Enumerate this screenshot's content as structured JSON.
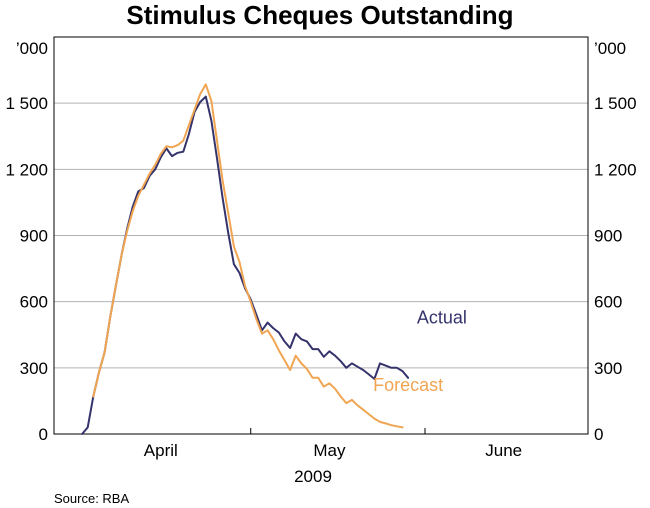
{
  "chart_data": {
    "type": "line",
    "title": "Stimulus Cheques Outstanding",
    "y_unit_left": "’000",
    "y_unit_right": "’000",
    "ylim": [
      0,
      1800
    ],
    "yticks": [
      0,
      300,
      600,
      900,
      1200,
      1500
    ],
    "ytick_labels": [
      "0",
      "300",
      "600",
      "900",
      "1 200",
      "1 500"
    ],
    "xlim": [
      "2009-03-27",
      "2009-06-30"
    ],
    "month_dividers": [
      "2009-03-27",
      "2009-05-01",
      "2009-06-01",
      "2009-06-30"
    ],
    "month_labels": [
      {
        "label": "April",
        "date": "2009-04-15"
      },
      {
        "label": "May",
        "date": "2009-05-15"
      },
      {
        "label": "June",
        "date": "2009-06-15"
      }
    ],
    "year_label": "2009",
    "grid": "horizontal",
    "source": "Source: RBA",
    "colors": {
      "Actual": "#35336b",
      "Forecast": "#f0a552",
      "grid": "#b3b3b3",
      "axis": "#000000"
    },
    "series": [
      {
        "name": "Actual",
        "label_anchor": {
          "date": "2009-06-04",
          "value": 500
        },
        "points": [
          [
            "2009-04-01",
            0
          ],
          [
            "2009-04-02",
            30
          ],
          [
            "2009-04-03",
            170
          ],
          [
            "2009-04-04",
            280
          ],
          [
            "2009-04-05",
            370
          ],
          [
            "2009-04-06",
            530
          ],
          [
            "2009-04-07",
            670
          ],
          [
            "2009-04-08",
            810
          ],
          [
            "2009-04-09",
            930
          ],
          [
            "2009-04-10",
            1030
          ],
          [
            "2009-04-11",
            1100
          ],
          [
            "2009-04-12",
            1115
          ],
          [
            "2009-04-13",
            1170
          ],
          [
            "2009-04-14",
            1200
          ],
          [
            "2009-04-15",
            1255
          ],
          [
            "2009-04-16",
            1295
          ],
          [
            "2009-04-17",
            1260
          ],
          [
            "2009-04-18",
            1275
          ],
          [
            "2009-04-19",
            1280
          ],
          [
            "2009-04-20",
            1360
          ],
          [
            "2009-04-21",
            1460
          ],
          [
            "2009-04-22",
            1505
          ],
          [
            "2009-04-23",
            1530
          ],
          [
            "2009-04-24",
            1420
          ],
          [
            "2009-04-25",
            1250
          ],
          [
            "2009-04-26",
            1070
          ],
          [
            "2009-04-27",
            910
          ],
          [
            "2009-04-28",
            770
          ],
          [
            "2009-04-29",
            730
          ],
          [
            "2009-04-30",
            660
          ],
          [
            "2009-05-01",
            610
          ],
          [
            "2009-05-02",
            540
          ],
          [
            "2009-05-03",
            470
          ],
          [
            "2009-05-04",
            505
          ],
          [
            "2009-05-05",
            480
          ],
          [
            "2009-05-06",
            460
          ],
          [
            "2009-05-07",
            420
          ],
          [
            "2009-05-08",
            390
          ],
          [
            "2009-05-09",
            455
          ],
          [
            "2009-05-10",
            430
          ],
          [
            "2009-05-11",
            420
          ],
          [
            "2009-05-12",
            385
          ],
          [
            "2009-05-13",
            385
          ],
          [
            "2009-05-14",
            350
          ],
          [
            "2009-05-15",
            375
          ],
          [
            "2009-05-16",
            355
          ],
          [
            "2009-05-17",
            330
          ],
          [
            "2009-05-18",
            300
          ],
          [
            "2009-05-19",
            320
          ],
          [
            "2009-05-20",
            305
          ],
          [
            "2009-05-21",
            290
          ],
          [
            "2009-05-22",
            270
          ],
          [
            "2009-05-23",
            250
          ],
          [
            "2009-05-24",
            320
          ],
          [
            "2009-05-25",
            310
          ],
          [
            "2009-05-26",
            300
          ],
          [
            "2009-05-27",
            300
          ],
          [
            "2009-05-28",
            285
          ],
          [
            "2009-05-29",
            255
          ]
        ]
      },
      {
        "name": "Forecast",
        "label_anchor": {
          "date": "2009-05-29",
          "value": 195
        },
        "points": [
          [
            "2009-04-03",
            170
          ],
          [
            "2009-04-04",
            280
          ],
          [
            "2009-04-05",
            370
          ],
          [
            "2009-04-06",
            530
          ],
          [
            "2009-04-07",
            670
          ],
          [
            "2009-04-08",
            810
          ],
          [
            "2009-04-09",
            920
          ],
          [
            "2009-04-10",
            1010
          ],
          [
            "2009-04-11",
            1080
          ],
          [
            "2009-04-12",
            1130
          ],
          [
            "2009-04-13",
            1180
          ],
          [
            "2009-04-14",
            1220
          ],
          [
            "2009-04-15",
            1270
          ],
          [
            "2009-04-16",
            1305
          ],
          [
            "2009-04-17",
            1300
          ],
          [
            "2009-04-18",
            1310
          ],
          [
            "2009-04-19",
            1330
          ],
          [
            "2009-04-20",
            1400
          ],
          [
            "2009-04-21",
            1470
          ],
          [
            "2009-04-22",
            1540
          ],
          [
            "2009-04-23",
            1585
          ],
          [
            "2009-04-24",
            1510
          ],
          [
            "2009-04-25",
            1330
          ],
          [
            "2009-04-26",
            1150
          ],
          [
            "2009-04-27",
            1000
          ],
          [
            "2009-04-28",
            850
          ],
          [
            "2009-04-29",
            780
          ],
          [
            "2009-04-30",
            670
          ],
          [
            "2009-05-01",
            600
          ],
          [
            "2009-05-02",
            520
          ],
          [
            "2009-05-03",
            455
          ],
          [
            "2009-05-04",
            470
          ],
          [
            "2009-05-05",
            430
          ],
          [
            "2009-05-06",
            380
          ],
          [
            "2009-05-07",
            335
          ],
          [
            "2009-05-08",
            290
          ],
          [
            "2009-05-09",
            355
          ],
          [
            "2009-05-10",
            320
          ],
          [
            "2009-05-11",
            295
          ],
          [
            "2009-05-12",
            255
          ],
          [
            "2009-05-13",
            255
          ],
          [
            "2009-05-14",
            215
          ],
          [
            "2009-05-15",
            230
          ],
          [
            "2009-05-16",
            205
          ],
          [
            "2009-05-17",
            170
          ],
          [
            "2009-05-18",
            140
          ],
          [
            "2009-05-19",
            155
          ],
          [
            "2009-05-20",
            130
          ],
          [
            "2009-05-21",
            110
          ],
          [
            "2009-05-22",
            90
          ],
          [
            "2009-05-23",
            70
          ],
          [
            "2009-05-24",
            55
          ],
          [
            "2009-05-25",
            48
          ],
          [
            "2009-05-26",
            40
          ],
          [
            "2009-05-27",
            35
          ],
          [
            "2009-05-28",
            30
          ]
        ]
      }
    ]
  }
}
